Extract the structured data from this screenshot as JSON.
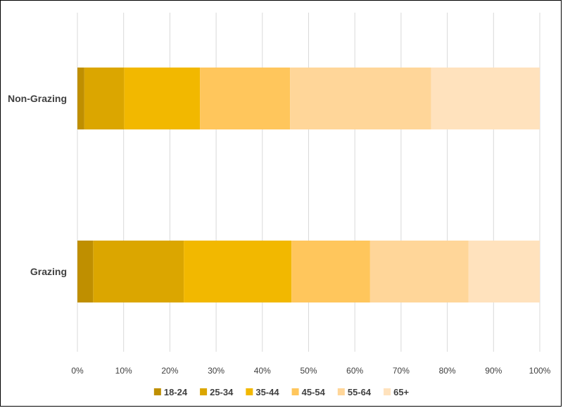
{
  "chart_data": {
    "type": "bar",
    "orientation": "horizontal",
    "stacked": "percent",
    "categories": [
      "Non-Grazing",
      "Grazing"
    ],
    "series": [
      {
        "name": "18-24",
        "color": "#bf8f00",
        "values": [
          1.5,
          3.4
        ]
      },
      {
        "name": "25-34",
        "color": "#dba600",
        "values": [
          8.6,
          19.6
        ]
      },
      {
        "name": "35-44",
        "color": "#f2b800",
        "values": [
          16.4,
          23.3
        ]
      },
      {
        "name": "45-54",
        "color": "#ffc65c",
        "values": [
          19.5,
          17.0
        ]
      },
      {
        "name": "55-64",
        "color": "#ffd699",
        "values": [
          30.5,
          21.3
        ]
      },
      {
        "name": "65+",
        "color": "#ffe2bd",
        "values": [
          23.5,
          15.4
        ]
      }
    ],
    "xlim": [
      0,
      100
    ],
    "x_ticks": [
      "0%",
      "10%",
      "20%",
      "30%",
      "40%",
      "50%",
      "60%",
      "70%",
      "80%",
      "90%",
      "100%"
    ],
    "grid": "vertical",
    "legend": "bottom",
    "title": "",
    "xlabel": "",
    "ylabel": ""
  }
}
